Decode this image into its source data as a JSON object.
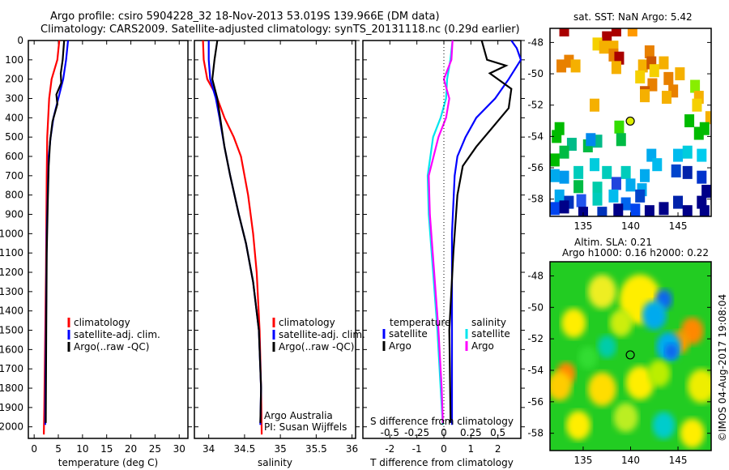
{
  "title_line1": "Argo profile: csiro 5904228_32 18-Nov-2013 53.019S 139.966E (DM data)",
  "title_line2": "Climatology: CARS2009. Satellite-adjusted climatology: synTS_20131118.nc (0.29d earlier)",
  "credit": "©IMOS 04-Aug-2017 19:08:04",
  "colors": {
    "climatology": "#ff0000",
    "satellite": "#0000ff",
    "argo": "#000000",
    "sal_satellite": "#00e5ee",
    "sal_argo": "#ff00ff"
  },
  "chart_data": [
    {
      "type": "line",
      "name": "temperature",
      "xlabel": "temperature (deg C)",
      "xlim": [
        -1.2,
        31.8
      ],
      "xticks": [
        0,
        5,
        10,
        15,
        20,
        25,
        30
      ],
      "ylim": [
        0,
        2060
      ],
      "yticks": [
        0,
        100,
        200,
        300,
        400,
        500,
        600,
        700,
        800,
        900,
        1000,
        1100,
        1200,
        1300,
        1400,
        1500,
        1600,
        1700,
        1800,
        1900,
        2000
      ],
      "legend": [
        "climatology",
        "satellite-adj. clim.",
        "Argo(..raw -QC)"
      ],
      "series": [
        {
          "name": "climatology",
          "color": "#ff0000",
          "x": [
            5.2,
            4.8,
            3.6,
            3.1,
            2.9,
            2.7,
            2.6,
            2.5,
            2.45,
            2.3,
            2.2,
            2.1,
            2.0
          ],
          "y": [
            0,
            100,
            200,
            300,
            400,
            500,
            700,
            1000,
            1200,
            1500,
            1700,
            1900,
            2040
          ]
        },
        {
          "name": "satellite-adj. clim.",
          "color": "#0000ff",
          "x": [
            7.0,
            6.6,
            6.0,
            5.0,
            4.0,
            3.4,
            3.0,
            2.8,
            2.6,
            2.5,
            2.4,
            2.3,
            2.3
          ],
          "y": [
            0,
            100,
            200,
            300,
            400,
            500,
            600,
            800,
            1000,
            1300,
            1600,
            1900,
            1990
          ]
        },
        {
          "name": "Argo(..raw -QC)",
          "color": "#000000",
          "x": [
            6.2,
            5.9,
            5.5,
            5.6,
            4.6,
            4.8,
            3.8,
            3.3,
            3.0,
            2.8,
            2.6,
            2.5,
            2.4
          ],
          "y": [
            0,
            100,
            170,
            220,
            280,
            330,
            420,
            520,
            650,
            850,
            1100,
            1500,
            1980
          ]
        }
      ]
    },
    {
      "type": "line",
      "name": "salinity",
      "xlabel": "salinity",
      "xlim": [
        33.8,
        36.05
      ],
      "xticks": [
        34,
        34.5,
        35,
        35.5,
        36
      ],
      "ylim": [
        0,
        2060
      ],
      "legend": [
        "climatology",
        "satellite-adj. clim.",
        "Argo(..raw -QC)"
      ],
      "annotation": [
        "Argo Australia",
        "PI: Susan Wijffels"
      ],
      "series": [
        {
          "name": "climatology",
          "color": "#ff0000",
          "x": [
            33.92,
            33.93,
            33.98,
            34.1,
            34.22,
            34.35,
            34.45,
            34.55,
            34.62,
            34.67,
            34.71,
            34.73,
            34.74
          ],
          "y": [
            0,
            100,
            200,
            280,
            400,
            500,
            600,
            800,
            1000,
            1200,
            1500,
            1800,
            2040
          ]
        },
        {
          "name": "satellite-adj. clim.",
          "color": "#0000ff",
          "x": [
            34.0,
            34.0,
            34.02,
            34.1,
            34.15,
            34.22,
            34.3,
            34.42,
            34.52,
            34.62,
            34.7,
            34.73,
            34.72
          ],
          "y": [
            0,
            100,
            200,
            300,
            400,
            550,
            700,
            900,
            1050,
            1250,
            1500,
            1800,
            1990
          ]
        },
        {
          "name": "Argo(..raw -QC)",
          "color": "#000000",
          "x": [
            34.12,
            34.08,
            34.05,
            34.12,
            34.16,
            34.22,
            34.3,
            34.42,
            34.52,
            34.62,
            34.7,
            34.73,
            34.72
          ],
          "y": [
            0,
            100,
            200,
            300,
            400,
            550,
            700,
            900,
            1050,
            1250,
            1500,
            1800,
            1980
          ]
        }
      ]
    },
    {
      "type": "line",
      "name": "difference",
      "xlabel": "T difference from climatology",
      "xlim": [
        -3,
        2.85
      ],
      "xticks": [
        -2,
        -1,
        0,
        1,
        2
      ],
      "x2label": "S difference from climatology",
      "x2lim": [
        -0.75,
        0.7125
      ],
      "x2ticks": [
        -0.5,
        -0.25,
        0,
        0.25,
        0.5
      ],
      "x2ticklabels": [
        "-0.5",
        "-0.25",
        "0",
        "0.25",
        "0.5"
      ],
      "ylim": [
        0,
        2060
      ],
      "legend": {
        "temperature_title": "temperature",
        "salinity_title": "salinity",
        "entries": [
          "satellite",
          "Argo",
          "satellite",
          "Argo"
        ]
      },
      "series": [
        {
          "name": "T satellite",
          "axis": "T",
          "color": "#0000ff",
          "x": [
            2.5,
            2.7,
            2.85,
            2.4,
            1.9,
            1.2,
            0.8,
            0.5,
            0.4,
            0.3,
            0.3,
            0.3,
            0.3
          ],
          "y": [
            0,
            40,
            100,
            200,
            300,
            400,
            500,
            600,
            700,
            1000,
            1400,
            1800,
            1990
          ]
        },
        {
          "name": "T Argo",
          "axis": "T",
          "color": "#000000",
          "x": [
            1.4,
            1.6,
            2.3,
            1.7,
            2.5,
            2.4,
            1.8,
            1.2,
            0.7,
            0.5,
            0.35,
            0.2,
            0.25
          ],
          "y": [
            0,
            100,
            130,
            170,
            250,
            350,
            450,
            550,
            650,
            800,
            1100,
            1500,
            1980
          ]
        },
        {
          "name": "S satellite",
          "axis": "S",
          "color": "#00e5ee",
          "x": [
            0.08,
            0.06,
            0.03,
            0.02,
            -0.03,
            -0.1,
            -0.15,
            -0.14,
            -0.1,
            -0.06,
            -0.03,
            -0.01
          ],
          "y": [
            0,
            100,
            200,
            300,
            400,
            500,
            700,
            900,
            1200,
            1500,
            1800,
            1990
          ]
        },
        {
          "name": "S Argo",
          "axis": "S",
          "color": "#ff00ff",
          "x": [
            0.08,
            0.07,
            0.0,
            0.05,
            0.02,
            -0.05,
            -0.14,
            -0.13,
            -0.09,
            -0.05,
            -0.02,
            -0.01
          ],
          "y": [
            0,
            100,
            200,
            300,
            400,
            500,
            700,
            900,
            1200,
            1500,
            1800,
            1980
          ]
        }
      ]
    },
    {
      "type": "heatmap",
      "name": "sst-map",
      "title": "sat. SST: NaN Argo: 5.42",
      "xlim": [
        131.5,
        148.5
      ],
      "ylim": [
        -59.1,
        -47.1
      ],
      "xticks": [
        135,
        140,
        145
      ],
      "yticks": [
        -48,
        -50,
        -52,
        -54,
        -56,
        -58
      ],
      "argo_position": [
        139.966,
        -53.019
      ],
      "cells": [
        [
          133,
          -47.2,
          "#aa0000"
        ],
        [
          138.5,
          -47.2,
          "#aa0000"
        ],
        [
          140.2,
          -47.2,
          "#ff9900"
        ],
        [
          137.5,
          -47.7,
          "#aa0000"
        ],
        [
          136.5,
          -48.1,
          "#f5d000"
        ],
        [
          137.2,
          -48.3,
          "#f5b000"
        ],
        [
          138.2,
          -48.3,
          "#f5b000"
        ],
        [
          138.2,
          -48.8,
          "#e88000"
        ],
        [
          138.8,
          -49,
          "#aa0000"
        ],
        [
          138.5,
          -49.6,
          "#f5b000"
        ],
        [
          133.5,
          -49.2,
          "#e88000"
        ],
        [
          132.7,
          -49.5,
          "#e88000"
        ],
        [
          134.2,
          -49.5,
          "#f5b000"
        ],
        [
          141.3,
          -49.5,
          "#f5b000"
        ],
        [
          142,
          -48.6,
          "#e88000"
        ],
        [
          142.2,
          -49.3,
          "#cc5500"
        ],
        [
          143.5,
          -49.3,
          "#f5b000"
        ],
        [
          142.5,
          -49.8,
          "#f5d000"
        ],
        [
          145.2,
          -50,
          "#f5b000"
        ],
        [
          144,
          -50.3,
          "#e88000"
        ],
        [
          141,
          -50.2,
          "#f5d000"
        ],
        [
          142.3,
          -50.7,
          "#e88000"
        ],
        [
          141.5,
          -51.2,
          "#cc5500"
        ],
        [
          144.5,
          -51.1,
          "#e88000"
        ],
        [
          143.8,
          -51.5,
          "#f5b000"
        ],
        [
          141.5,
          -51.4,
          "#f5b000"
        ],
        [
          146.8,
          -50.8,
          "#88ee00"
        ],
        [
          147.2,
          -51.5,
          "#f5b000"
        ],
        [
          136.2,
          -52,
          "#f5b000"
        ],
        [
          147,
          -52,
          "#f5d000"
        ],
        [
          148.4,
          -52.8,
          "#f5b000"
        ],
        [
          146.2,
          -53,
          "#00bb00"
        ],
        [
          147.2,
          -53.8,
          "#00bb00"
        ],
        [
          147.8,
          -53.5,
          "#00bb00"
        ],
        [
          138.8,
          -53.4,
          "#33dd00"
        ],
        [
          139,
          -54.2,
          "#00bb44"
        ],
        [
          132.5,
          -53.5,
          "#00bb00"
        ],
        [
          132.2,
          -54,
          "#00bb00"
        ],
        [
          133.8,
          -54.5,
          "#00bb88"
        ],
        [
          133,
          -55,
          "#00bb44"
        ],
        [
          132,
          -55.5,
          "#00bb00"
        ],
        [
          135.5,
          -54.6,
          "#00bb44"
        ],
        [
          136.5,
          -54.3,
          "#00bb88"
        ],
        [
          135.8,
          -54.2,
          "#0088ee"
        ],
        [
          142.2,
          -55.2,
          "#00aaee"
        ],
        [
          142.8,
          -55.8,
          "#00bbee"
        ],
        [
          145,
          -55.2,
          "#00bbee"
        ],
        [
          146,
          -55,
          "#00ccdd"
        ],
        [
          147.5,
          -55.2,
          "#00ccee"
        ],
        [
          136.2,
          -55.8,
          "#00ccdd"
        ],
        [
          137.5,
          -56.3,
          "#00ccbb"
        ],
        [
          139.5,
          -56.3,
          "#00ccbb"
        ],
        [
          141.5,
          -56.5,
          "#00aaee"
        ],
        [
          134.5,
          -56.3,
          "#00ccbb"
        ],
        [
          133,
          -56.6,
          "#0099ee"
        ],
        [
          132,
          -56.5,
          "#00aaee"
        ],
        [
          134.5,
          -57.2,
          "#00bb44"
        ],
        [
          136.5,
          -57.3,
          "#00ccaa"
        ],
        [
          138.5,
          -57,
          "#2244dd"
        ],
        [
          140,
          -57.1,
          "#00aaee"
        ],
        [
          141.2,
          -57.4,
          "#00aaee"
        ],
        [
          144.8,
          -56.2,
          "#0044cc"
        ],
        [
          146,
          -56.3,
          "#0022aa"
        ],
        [
          147.5,
          -56.6,
          "#0033cc"
        ],
        [
          148,
          -57.5,
          "#000088"
        ],
        [
          147.5,
          -58.2,
          "#000088"
        ],
        [
          132.5,
          -57.8,
          "#00aaee"
        ],
        [
          133.5,
          -58.2,
          "#0033bb"
        ],
        [
          134.8,
          -58.1,
          "#2255ee"
        ],
        [
          136.5,
          -58,
          "#00ccbb"
        ],
        [
          138.2,
          -57.8,
          "#00bbee"
        ],
        [
          139.5,
          -58.3,
          "#0066ee"
        ],
        [
          141,
          -57.8,
          "#0044cc"
        ],
        [
          132,
          -58.6,
          "#0044ee"
        ],
        [
          133,
          -58.5,
          "#000088"
        ],
        [
          135,
          -58.9,
          "#000088"
        ],
        [
          137,
          -58.9,
          "#0033bb"
        ],
        [
          138.7,
          -58.7,
          "#000088"
        ],
        [
          140.5,
          -58.7,
          "#0044ee"
        ],
        [
          142,
          -58.8,
          "#000088"
        ],
        [
          143.5,
          -58.6,
          "#000088"
        ],
        [
          145,
          -58.2,
          "#0022aa"
        ],
        [
          146,
          -58.8,
          "#000088"
        ],
        [
          147.8,
          -58.8,
          "#000088"
        ]
      ]
    },
    {
      "type": "heatmap",
      "name": "sla-map",
      "title_line1": "Altim. SLA: 0.21",
      "title_line2": "Argo h1000: 0.16 h2000: 0.22",
      "xlim": [
        131.5,
        148.5
      ],
      "ylim": [
        -59.1,
        -47.1
      ],
      "xticks": [
        135,
        140,
        145
      ],
      "yticks": [
        -48,
        -50,
        -52,
        -54,
        -56,
        -58
      ],
      "argo_position": [
        139.966,
        -53.019
      ],
      "background": "#22cc22",
      "blobs": [
        [
          141,
          -49.5,
          "#ffee00",
          2.2
        ],
        [
          137,
          -49,
          "#eeee22",
          1.5
        ],
        [
          143.5,
          -49.5,
          "#1166ee",
          0.9
        ],
        [
          142.5,
          -50.5,
          "#00aaee",
          1.3
        ],
        [
          146.5,
          -51.5,
          "#ff8800",
          1.2
        ],
        [
          145.2,
          -52.2,
          "#ff9900",
          1.0
        ],
        [
          144,
          -52.5,
          "#00aaee",
          1.3
        ],
        [
          144.3,
          -52.8,
          "#1166ee",
          0.7
        ],
        [
          134,
          -51,
          "#ffee00",
          1.3
        ],
        [
          139,
          -51,
          "#ccee11",
          1.2
        ],
        [
          133.2,
          -54.2,
          "#ff8800",
          1.0
        ],
        [
          132.5,
          -55,
          "#ffcc00",
          1.3
        ],
        [
          137,
          -55.2,
          "#ffdd00",
          1.5
        ],
        [
          141,
          -54.8,
          "#ffee00",
          1.5
        ],
        [
          143,
          -54.2,
          "#bbee00",
          1.2
        ],
        [
          147.5,
          -55,
          "#eeee00",
          1.5
        ],
        [
          134.5,
          -57.5,
          "#ffee00",
          1.3
        ],
        [
          139.5,
          -57,
          "#bbee22",
          1.3
        ],
        [
          143.5,
          -57.5,
          "#00cccc",
          1.2
        ],
        [
          146.5,
          -58,
          "#ffee00",
          1.3
        ],
        [
          137.5,
          -52.5,
          "#00ccaa",
          1.0
        ],
        [
          135.5,
          -53.2,
          "#33dd33",
          1.0
        ]
      ]
    }
  ]
}
